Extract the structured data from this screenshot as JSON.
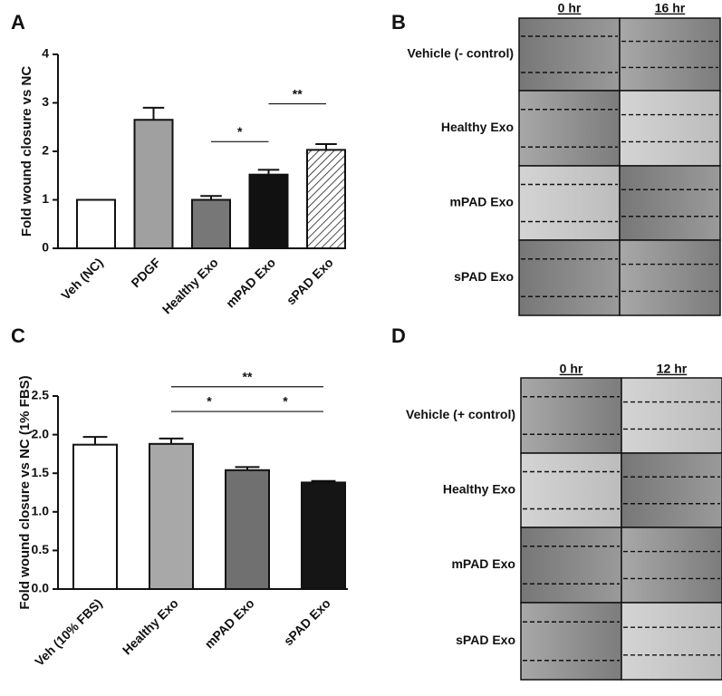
{
  "panels": [
    "A",
    "B",
    "C",
    "D"
  ],
  "chart_data": [
    {
      "type": "bar",
      "ylabel": "Fold wound closure vs NC",
      "categories": [
        "Veh (NC)",
        "PDGF",
        "Healthy Exo",
        "mPAD Exo",
        "sPAD Exo"
      ],
      "values": [
        1.0,
        2.65,
        1.0,
        1.52,
        2.03
      ],
      "errors": [
        0,
        0.25,
        0.08,
        0.1,
        0.12
      ],
      "colors": [
        "#ffffff",
        "#a0a0a0",
        "#777777",
        "#111111",
        "#ffffff"
      ],
      "hatch": [
        false,
        false,
        false,
        false,
        true
      ],
      "ylim": [
        0,
        4
      ],
      "yticks": [
        0,
        1,
        2,
        3,
        4
      ],
      "significance": [
        {
          "label": "*",
          "from": 2,
          "to": 3,
          "y": 2.2
        },
        {
          "label": "**",
          "from": 3,
          "to": 4,
          "y": 2.98
        }
      ]
    },
    {
      "type": "bar",
      "ylabel": "Fold wound closure vs NC (1% FBS)",
      "categories": [
        "Veh (10% FBS)",
        "Healthy Exo",
        "mPAD Exo",
        "sPAD Exo"
      ],
      "values": [
        1.87,
        1.88,
        1.54,
        1.38
      ],
      "errors": [
        0.1,
        0.07,
        0.04,
        0.02
      ],
      "colors": [
        "#ffffff",
        "#a8a8a8",
        "#707070",
        "#151515"
      ],
      "hatch": [
        false,
        false,
        false,
        false
      ],
      "ylim": [
        0,
        2.5
      ],
      "yticks": [
        {
          "value": 0,
          "label": "0.0"
        },
        0.5,
        {
          "value": 1,
          "label": "1.0"
        },
        1.5,
        {
          "value": 2,
          "label": "2.0"
        },
        2.5
      ],
      "significance": [
        {
          "label": "**",
          "from": 1,
          "to": 3,
          "y": 2.62
        },
        {
          "label": "*",
          "from": 1,
          "to": 2,
          "y": 2.3
        },
        {
          "label": "*",
          "from": 2,
          "to": 3,
          "y": 2.3
        }
      ]
    }
  ],
  "images": [
    {
      "columns": [
        "0 hr",
        "16 hr"
      ],
      "rows": [
        "Vehicle (- control)",
        "Healthy Exo",
        "mPAD Exo",
        "sPAD Exo"
      ]
    },
    {
      "columns": [
        "0 hr",
        "12 hr"
      ],
      "rows": [
        "Vehicle (+ control)",
        "Healthy Exo",
        "mPAD Exo",
        "sPAD Exo"
      ]
    }
  ]
}
